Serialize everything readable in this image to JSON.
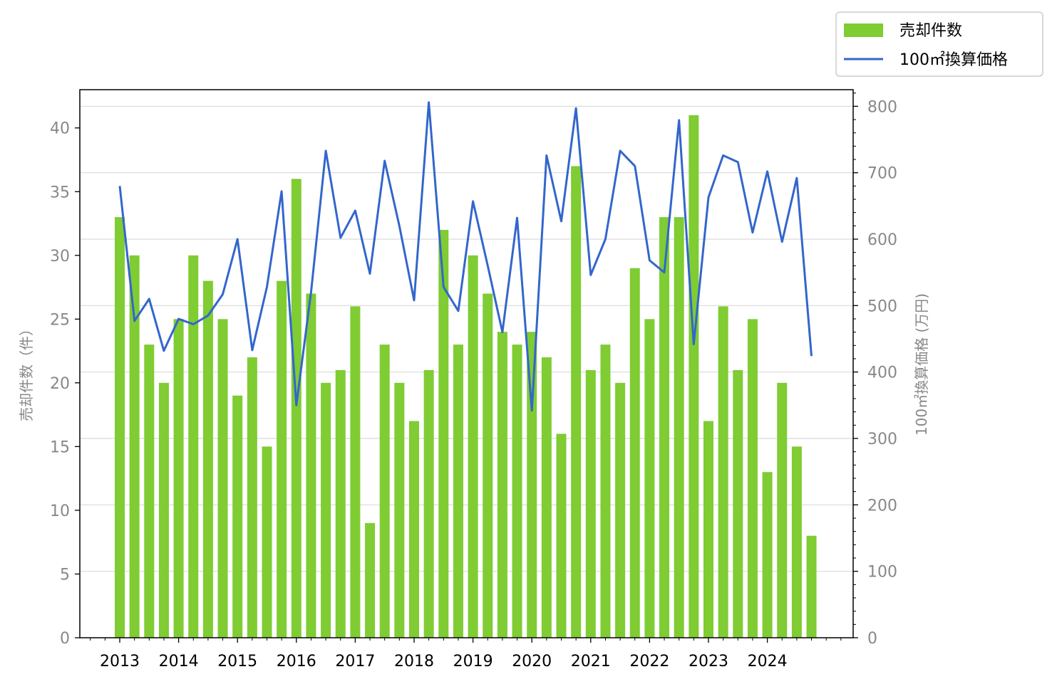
{
  "chart_data": {
    "type": "bar+line",
    "x": [
      "2013Q1",
      "2013Q2",
      "2013Q3",
      "2013Q4",
      "2014Q1",
      "2014Q2",
      "2014Q3",
      "2014Q4",
      "2015Q1",
      "2015Q2",
      "2015Q3",
      "2015Q4",
      "2016Q1",
      "2016Q2",
      "2016Q3",
      "2016Q4",
      "2017Q1",
      "2017Q2",
      "2017Q3",
      "2017Q4",
      "2018Q1",
      "2018Q2",
      "2018Q3",
      "2018Q4",
      "2019Q1",
      "2019Q2",
      "2019Q3",
      "2019Q4",
      "2020Q1",
      "2020Q2",
      "2020Q3",
      "2020Q4",
      "2021Q1",
      "2021Q2",
      "2021Q3",
      "2021Q4",
      "2022Q1",
      "2022Q2",
      "2022Q3",
      "2022Q4",
      "2023Q1",
      "2023Q2",
      "2023Q3",
      "2023Q4",
      "2024Q1",
      "2024Q2",
      "2024Q3",
      "2024Q4"
    ],
    "x_tick_labels": [
      "2013",
      "2014",
      "2015",
      "2016",
      "2017",
      "2018",
      "2019",
      "2020",
      "2021",
      "2022",
      "2023",
      "2024"
    ],
    "series": [
      {
        "name": "売却件数",
        "kind": "bar",
        "axis": "left",
        "color": "#7fcc33",
        "values": [
          33,
          30,
          23,
          20,
          25,
          30,
          28,
          25,
          19,
          22,
          15,
          28,
          36,
          27,
          20,
          21,
          26,
          9,
          23,
          20,
          17,
          21,
          32,
          23,
          30,
          27,
          24,
          23,
          24,
          22,
          16,
          37,
          21,
          23,
          20,
          29,
          25,
          33,
          33,
          41,
          17,
          26,
          21,
          25,
          13,
          20,
          15,
          8
        ]
      },
      {
        "name": "100㎡換算価格",
        "kind": "line",
        "axis": "right",
        "color": "#3366cc",
        "values": [
          680,
          477,
          510,
          432,
          480,
          472,
          485,
          517,
          600,
          433,
          528,
          672,
          350,
          520,
          733,
          602,
          643,
          548,
          718,
          620,
          508,
          806,
          528,
          492,
          657,
          560,
          460,
          632,
          342,
          726,
          627,
          797,
          546,
          600,
          733,
          710,
          568,
          550,
          779,
          442,
          663,
          726,
          716,
          610,
          702,
          596,
          692,
          424
        ]
      }
    ],
    "y_left": {
      "label": "売却件数（件）",
      "ylim": [
        0,
        43
      ],
      "ticks": [
        "0",
        "5",
        "10",
        "15",
        "20",
        "25",
        "30",
        "35",
        "40"
      ]
    },
    "y_right": {
      "label": "100㎡換算価格 (万円)",
      "ylim": [
        0,
        825
      ],
      "ticks": [
        "0",
        "100",
        "200",
        "300",
        "400",
        "500",
        "600",
        "700",
        "800"
      ]
    },
    "grid": "horizontal, right axis",
    "legend": {
      "placement": "outside top-right",
      "entries": [
        "売却件数",
        "100㎡換算価格"
      ]
    }
  }
}
